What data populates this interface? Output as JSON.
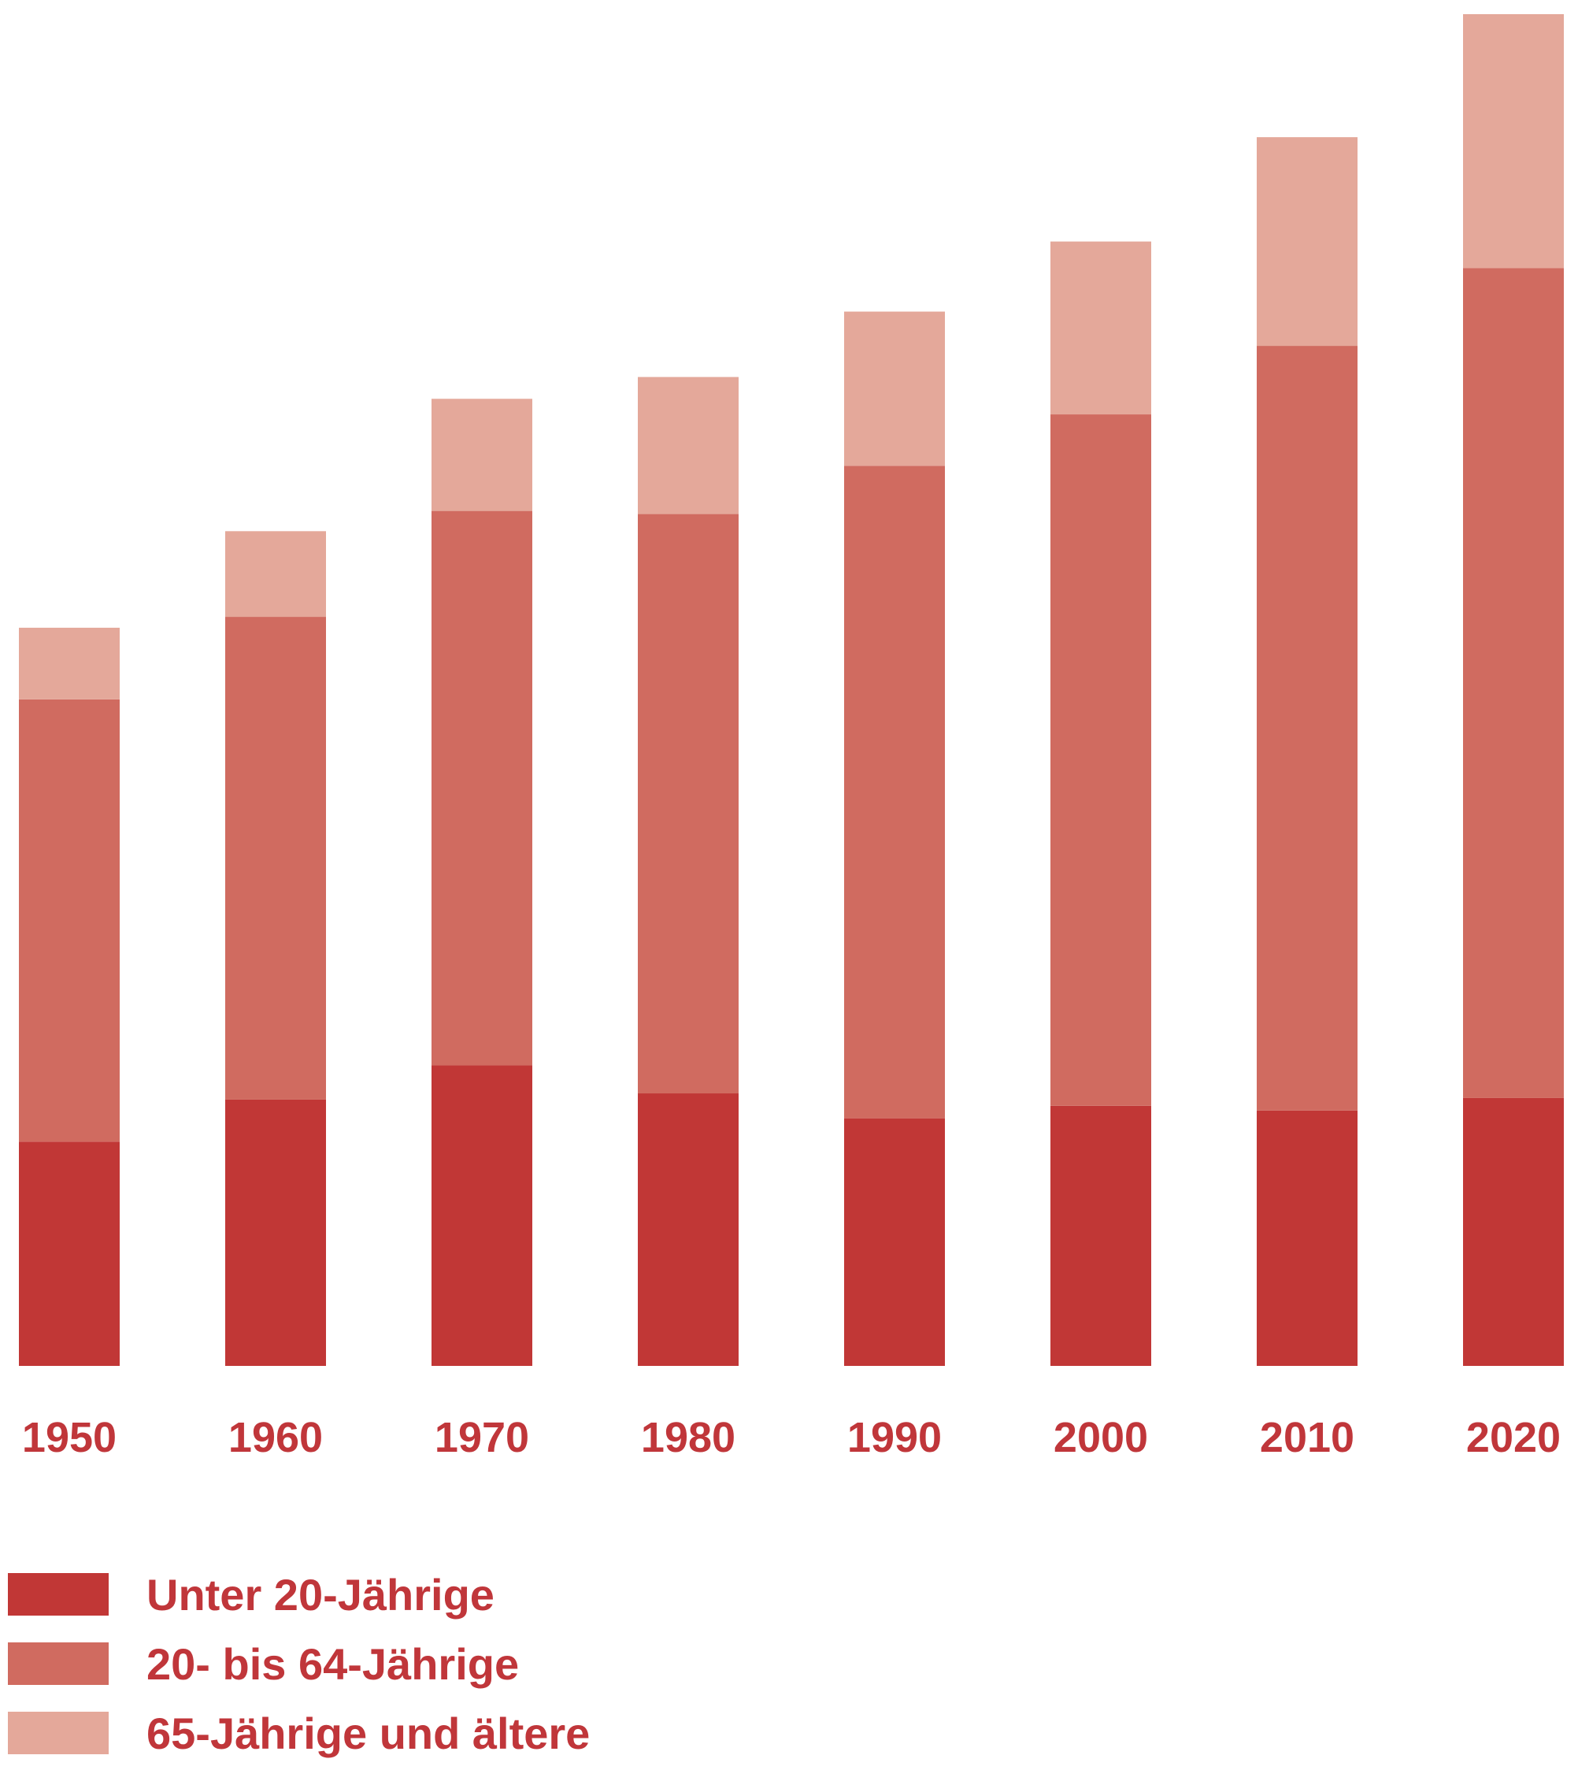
{
  "chart_data": {
    "type": "bar",
    "stacked": true,
    "categories": [
      "1950",
      "1960",
      "1970",
      "1980",
      "1990",
      "2000",
      "2010",
      "2020"
    ],
    "series": [
      {
        "name": "Unter 20-Jährige",
        "color": "#c13736",
        "values": [
          1.44,
          1.71,
          1.93,
          1.75,
          1.59,
          1.67,
          1.64,
          1.72
        ]
      },
      {
        "name": "20- bis 64-Jährige",
        "color": "#d06b60",
        "values": [
          2.84,
          3.1,
          3.56,
          3.72,
          4.19,
          4.44,
          4.91,
          5.33
        ]
      },
      {
        "name": "65-Jährige und ältere",
        "color": "#e4a89a",
        "values": [
          0.46,
          0.55,
          0.72,
          0.88,
          0.99,
          1.11,
          1.34,
          1.63
        ]
      }
    ],
    "title": "",
    "xlabel": "",
    "ylabel": "",
    "ylim": [
      0,
      8.7
    ],
    "grid": false,
    "legend": "bottom-left"
  }
}
